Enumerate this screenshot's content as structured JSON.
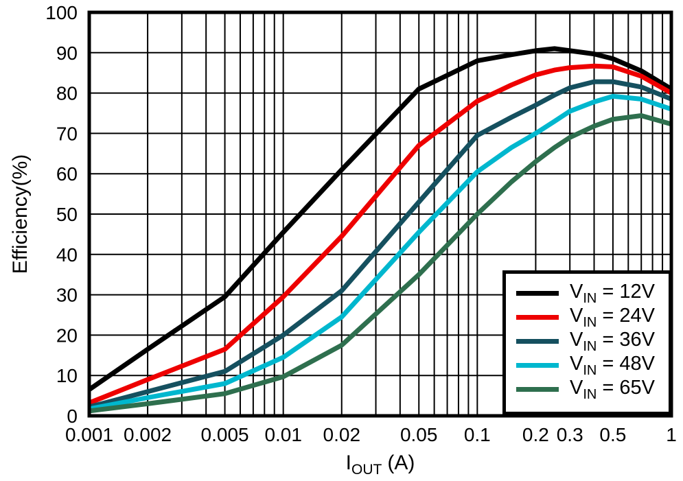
{
  "chart_data": {
    "type": "line",
    "title": "",
    "ylabel": "Efficiency(%)",
    "xlabel": {
      "base": "I",
      "sub": "OUT",
      "unit": "(A)"
    },
    "x_scale": "log",
    "xlim": [
      0.001,
      1
    ],
    "ylim": [
      0,
      100
    ],
    "grid": true,
    "legend_position": "bottom-right",
    "frame_color": "#000000",
    "grid_color": "#000000",
    "x_ticks": [
      {
        "value": 0.001,
        "label": "0.001"
      },
      {
        "value": 0.002,
        "label": "0.002"
      },
      {
        "value": 0.005,
        "label": "0.005"
      },
      {
        "value": 0.01,
        "label": "0.01"
      },
      {
        "value": 0.02,
        "label": "0.02"
      },
      {
        "value": 0.05,
        "label": "0.05"
      },
      {
        "value": 0.1,
        "label": "0.1"
      },
      {
        "value": 0.2,
        "label": "0.2"
      },
      {
        "value": 0.3,
        "label": "0.3"
      },
      {
        "value": 0.5,
        "label": "0.5"
      },
      {
        "value": 1,
        "label": "1"
      }
    ],
    "y_ticks": [
      {
        "value": 0,
        "label": "0"
      },
      {
        "value": 10,
        "label": "10"
      },
      {
        "value": 20,
        "label": "20"
      },
      {
        "value": 30,
        "label": "30"
      },
      {
        "value": 40,
        "label": "40"
      },
      {
        "value": 50,
        "label": "50"
      },
      {
        "value": 60,
        "label": "60"
      },
      {
        "value": 70,
        "label": "70"
      },
      {
        "value": 80,
        "label": "80"
      },
      {
        "value": 90,
        "label": "90"
      },
      {
        "value": 100,
        "label": "100"
      }
    ],
    "x": [
      0.001,
      0.002,
      0.005,
      0.01,
      0.02,
      0.05,
      0.1,
      0.15,
      0.2,
      0.25,
      0.3,
      0.4,
      0.5,
      0.7,
      1
    ],
    "series": [
      {
        "label": {
          "base": "V",
          "sub": "IN",
          "rest": " = 12V"
        },
        "color": "#000000",
        "values": [
          6.5,
          16.5,
          29.5,
          45.5,
          61,
          81,
          88,
          89.5,
          90.5,
          91,
          90.5,
          89.7,
          88.5,
          85.5,
          81
        ]
      },
      {
        "label": {
          "base": "V",
          "sub": "IN",
          "rest": " = 24V"
        },
        "color": "#ee0000",
        "values": [
          3.2,
          9,
          16.5,
          29.5,
          44.5,
          67,
          78,
          82,
          84.5,
          85.7,
          86.3,
          86.7,
          86.5,
          84.2,
          80
        ]
      },
      {
        "label": {
          "base": "V",
          "sub": "IN",
          "rest": " = 36V"
        },
        "color": "#15505f",
        "values": [
          2.2,
          6,
          11,
          20,
          31,
          53,
          69.5,
          74,
          77,
          79.5,
          81.3,
          82.8,
          82.8,
          81.5,
          78.5
        ]
      },
      {
        "label": {
          "base": "V",
          "sub": "IN",
          "rest": " = 48V"
        },
        "color": "#00b7ce",
        "values": [
          1.7,
          4.5,
          8,
          14.5,
          24.5,
          45.5,
          60.5,
          66.5,
          70,
          73,
          75.5,
          77.8,
          79.2,
          78.5,
          76
        ]
      },
      {
        "label": {
          "base": "V",
          "sub": "IN",
          "rest": " = 65V"
        },
        "color": "#2e6f4e",
        "values": [
          1.2,
          3,
          5.5,
          9.7,
          17.5,
          35,
          50,
          58,
          63,
          66.5,
          69,
          71.8,
          73.5,
          74.4,
          72.3
        ]
      }
    ]
  }
}
